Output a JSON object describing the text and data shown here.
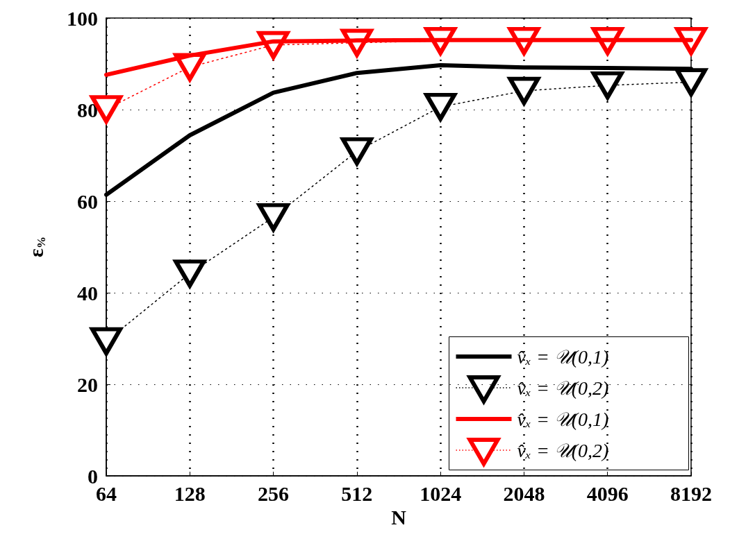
{
  "chart_data": {
    "type": "line",
    "xlabel": "N",
    "ylabel": "ε$_{%}$",
    "categories": [
      "64",
      "128",
      "256",
      "512",
      "1024",
      "2048",
      "4096",
      "8192"
    ],
    "ylim": [
      0,
      100
    ],
    "yticks": [
      0,
      20,
      40,
      60,
      80,
      100
    ],
    "grid": true,
    "legend": "bottom right",
    "series": [
      {
        "name": "v̂ₓ = 𝒰(0,1)",
        "color": "#000000",
        "marker": "none",
        "line_style": "solid",
        "values": [
          61.4,
          74.4,
          83.7,
          88.0,
          89.7,
          89.2,
          89.1,
          88.9
        ]
      },
      {
        "name": "v̂ₓ = 𝒰(0,2)",
        "color": "#000000",
        "marker": "triangle",
        "line_style": "dotted",
        "values": [
          29.4,
          44.2,
          56.5,
          70.9,
          80.6,
          84.1,
          85.3,
          86.0
        ]
      },
      {
        "name": "v̂ₓ = 𝒰(0,1)",
        "color": "#ff0000",
        "marker": "none",
        "line_style": "solid",
        "values": [
          87.6,
          91.8,
          94.9,
          95.1,
          95.2,
          95.2,
          95.2,
          95.2
        ]
      },
      {
        "name": "v̂ₓ = 𝒰(0,2)",
        "color": "#ff0000",
        "marker": "triangle",
        "line_style": "dotted",
        "values": [
          80.1,
          89.3,
          94.1,
          94.6,
          95.0,
          95.0,
          95.0,
          95.0
        ]
      }
    ]
  }
}
